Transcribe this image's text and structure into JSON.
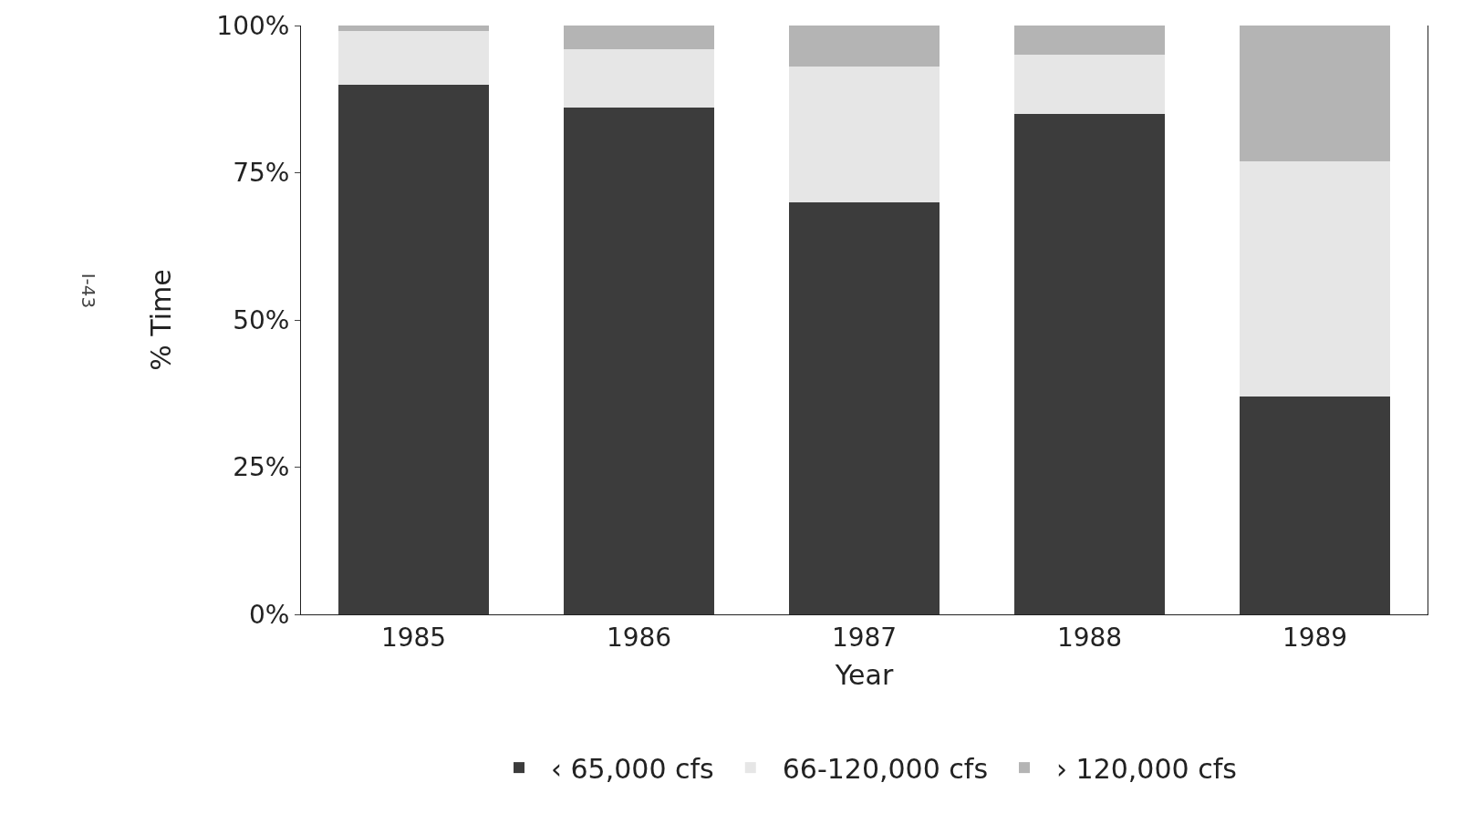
{
  "chart_data": {
    "type": "bar",
    "stacked": true,
    "xlabel": "Year",
    "ylabel": "% Time",
    "categories": [
      "1985",
      "1986",
      "1987",
      "1988",
      "1989"
    ],
    "series": [
      {
        "name": "‹ 65,000 cfs",
        "color": "#3c3c3c",
        "values": [
          90,
          86,
          70,
          85,
          37
        ]
      },
      {
        "name": "66-120,000 cfs",
        "color": "#e6e6e6",
        "values": [
          9,
          10,
          23,
          10,
          40
        ]
      },
      {
        "name": "› 120,000 cfs",
        "color": "#b4b4b4",
        "values": [
          1,
          4,
          7,
          5,
          23
        ]
      }
    ],
    "ylim": [
      0,
      100
    ],
    "yticks": [
      {
        "value": 0,
        "label": "0%"
      },
      {
        "value": 25,
        "label": "25%"
      },
      {
        "value": 50,
        "label": "50%"
      },
      {
        "value": 75,
        "label": "75%"
      },
      {
        "value": 100,
        "label": "100%"
      }
    ],
    "legend": "bottom",
    "annotations": [
      "I-43"
    ]
  }
}
